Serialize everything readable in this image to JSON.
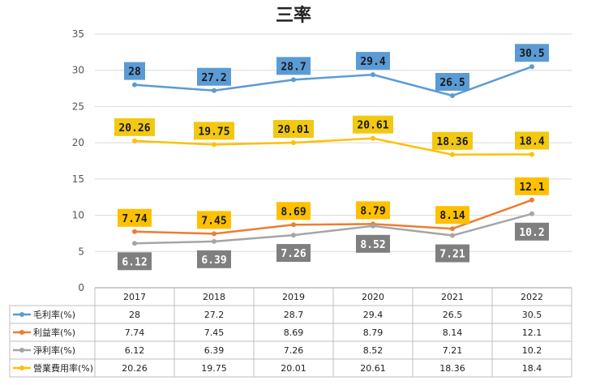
{
  "chart_data": {
    "type": "line",
    "title": "三率",
    "categories": [
      "2017",
      "2018",
      "2019",
      "2020",
      "2021",
      "2022"
    ],
    "ylim": [
      0,
      35
    ],
    "yticks": [
      0,
      5,
      10,
      15,
      20,
      25,
      30,
      35
    ],
    "grid": true,
    "legend": "table-below",
    "series": [
      {
        "name": "毛利率(%)",
        "color": "#5B9BD5",
        "label_bg": "#5B9BD5",
        "label_fg": "#1a1a1a",
        "label_pos": "above",
        "values": [
          28,
          27.2,
          28.7,
          29.4,
          26.5,
          30.5
        ],
        "labels": [
          "28",
          "27.2",
          "28.7",
          "29.4",
          "26.5",
          "30.5"
        ]
      },
      {
        "name": "利益率(%)",
        "color": "#ED7D31",
        "label_bg": "#FFC000",
        "label_fg": "#1a1a1a",
        "label_pos": "above",
        "values": [
          7.74,
          7.45,
          8.69,
          8.79,
          8.14,
          12.1
        ],
        "labels": [
          "7.74",
          "7.45",
          "8.69",
          "8.79",
          "8.14",
          "12.1"
        ]
      },
      {
        "name": "淨利率(%)",
        "color": "#A5A5A5",
        "label_bg": "#7F7F7F",
        "label_fg": "#ffffff",
        "label_pos": "below",
        "values": [
          6.12,
          6.39,
          7.26,
          8.52,
          7.21,
          10.2
        ],
        "labels": [
          "6.12",
          "6.39",
          "7.26",
          "8.52",
          "7.21",
          "10.2"
        ]
      },
      {
        "name": "營業費用率(%)",
        "color": "#FFC000",
        "label_bg": "#F2C811",
        "label_fg": "#1a1a1a",
        "label_pos": "above",
        "values": [
          20.26,
          19.75,
          20.01,
          20.61,
          18.36,
          18.4
        ],
        "labels": [
          "20.26",
          "19.75",
          "20.01",
          "20.61",
          "18.36",
          "18.4"
        ]
      }
    ]
  }
}
